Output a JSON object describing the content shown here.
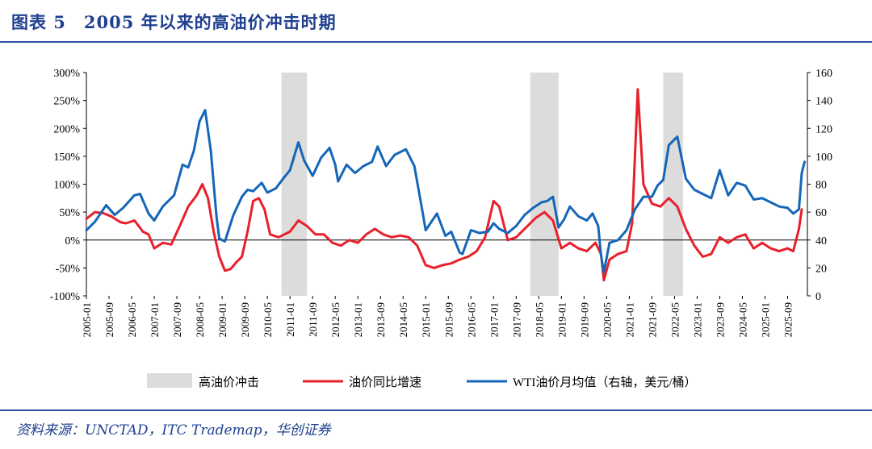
{
  "header": {
    "title": "图表 5　2005 年以来的高油价冲击时期"
  },
  "footer": {
    "source": "资料来源：UNCTAD，ITC Trademap，华创证券"
  },
  "chart_data": {
    "type": "line",
    "title": "图表 5　2005 年以来的高油价冲击时期",
    "x_tick_labels": [
      "2005-01",
      "2005-09",
      "2006-05",
      "2007-01",
      "2007-09",
      "2008-05",
      "2009-01",
      "2009-09",
      "2010-05",
      "2011-01",
      "2011-09",
      "2012-05",
      "2013-01",
      "2013-09",
      "2014-05",
      "2015-01",
      "2015-09",
      "2016-05",
      "2017-01",
      "2017-09",
      "2018-05",
      "2019-01",
      "2019-09",
      "2020-05",
      "2021-01",
      "2021-09",
      "2022-05",
      "2023-01",
      "2023-09",
      "2024-05",
      "2025-01",
      "2025-09"
    ],
    "y_left": {
      "ticks": [
        "-100%",
        "-50%",
        "0%",
        "50%",
        "100%",
        "150%",
        "200%",
        "250%",
        "300%"
      ],
      "range": [
        -100,
        300
      ],
      "unit": "%"
    },
    "y_right": {
      "ticks": [
        "0",
        "20",
        "40",
        "60",
        "80",
        "100",
        "120",
        "140",
        "160"
      ],
      "range": [
        0,
        160
      ]
    },
    "shaded_periods": [
      {
        "name": "高油价冲击",
        "start": "2010-10",
        "end": "2011-07"
      },
      {
        "name": "高油价冲击",
        "start": "2018-02",
        "end": "2018-12"
      },
      {
        "name": "高油价冲击",
        "start": "2022-01",
        "end": "2022-08"
      }
    ],
    "legend": [
      {
        "label": "高油价冲击",
        "type": "band",
        "color": "#dcdcdc"
      },
      {
        "label": "油价同比增速",
        "type": "line",
        "color": "#e8202a"
      },
      {
        "label": "WTI油价月均值（右轴，美元/桶）",
        "type": "line",
        "color": "#1566b8"
      }
    ],
    "series": [
      {
        "name": "油价同比增速",
        "axis": "left",
        "color": "#e8202a",
        "points": [
          [
            "2005-01",
            38
          ],
          [
            "2005-04",
            50
          ],
          [
            "2005-07",
            48
          ],
          [
            "2005-10",
            42
          ],
          [
            "2006-01",
            32
          ],
          [
            "2006-03",
            30
          ],
          [
            "2006-06",
            35
          ],
          [
            "2006-09",
            15
          ],
          [
            "2006-11",
            10
          ],
          [
            "2007-01",
            -15
          ],
          [
            "2007-04",
            -5
          ],
          [
            "2007-07",
            -8
          ],
          [
            "2007-10",
            25
          ],
          [
            "2008-01",
            60
          ],
          [
            "2008-04",
            80
          ],
          [
            "2008-06",
            100
          ],
          [
            "2008-08",
            75
          ],
          [
            "2008-10",
            15
          ],
          [
            "2008-12",
            -30
          ],
          [
            "2009-02",
            -55
          ],
          [
            "2009-04",
            -52
          ],
          [
            "2009-06",
            -40
          ],
          [
            "2009-08",
            -30
          ],
          [
            "2009-10",
            15
          ],
          [
            "2009-12",
            70
          ],
          [
            "2010-02",
            75
          ],
          [
            "2010-04",
            55
          ],
          [
            "2010-06",
            10
          ],
          [
            "2010-09",
            5
          ],
          [
            "2011-01",
            15
          ],
          [
            "2011-04",
            35
          ],
          [
            "2011-07",
            25
          ],
          [
            "2011-10",
            10
          ],
          [
            "2012-01",
            10
          ],
          [
            "2012-04",
            -5
          ],
          [
            "2012-07",
            -10
          ],
          [
            "2012-10",
            0
          ],
          [
            "2013-01",
            -5
          ],
          [
            "2013-04",
            10
          ],
          [
            "2013-07",
            20
          ],
          [
            "2013-10",
            10
          ],
          [
            "2014-01",
            5
          ],
          [
            "2014-04",
            8
          ],
          [
            "2014-07",
            5
          ],
          [
            "2014-10",
            -10
          ],
          [
            "2015-01",
            -45
          ],
          [
            "2015-04",
            -50
          ],
          [
            "2015-07",
            -45
          ],
          [
            "2015-10",
            -42
          ],
          [
            "2016-01",
            -35
          ],
          [
            "2016-04",
            -30
          ],
          [
            "2016-07",
            -20
          ],
          [
            "2016-10",
            5
          ],
          [
            "2017-01",
            70
          ],
          [
            "2017-03",
            60
          ],
          [
            "2017-06",
            0
          ],
          [
            "2017-09",
            5
          ],
          [
            "2018-01",
            25
          ],
          [
            "2018-04",
            40
          ],
          [
            "2018-07",
            50
          ],
          [
            "2018-10",
            35
          ],
          [
            "2019-01",
            -15
          ],
          [
            "2019-04",
            -5
          ],
          [
            "2019-07",
            -15
          ],
          [
            "2019-10",
            -20
          ],
          [
            "2020-01",
            -5
          ],
          [
            "2020-03",
            -25
          ],
          [
            "2020-04",
            -72
          ],
          [
            "2020-06",
            -35
          ],
          [
            "2020-09",
            -25
          ],
          [
            "2020-12",
            -20
          ],
          [
            "2021-02",
            30
          ],
          [
            "2021-04",
            270
          ],
          [
            "2021-06",
            100
          ],
          [
            "2021-09",
            65
          ],
          [
            "2021-12",
            60
          ],
          [
            "2022-03",
            75
          ],
          [
            "2022-06",
            60
          ],
          [
            "2022-09",
            20
          ],
          [
            "2022-12",
            -10
          ],
          [
            "2023-03",
            -30
          ],
          [
            "2023-06",
            -25
          ],
          [
            "2023-09",
            5
          ],
          [
            "2023-12",
            -5
          ],
          [
            "2024-03",
            5
          ],
          [
            "2024-06",
            10
          ],
          [
            "2024-09",
            -15
          ],
          [
            "2024-12",
            -5
          ],
          [
            "2025-03",
            -15
          ],
          [
            "2025-06",
            -20
          ],
          [
            "2025-09",
            -15
          ],
          [
            "2025-11",
            -20
          ],
          [
            "2026-01",
            20
          ],
          [
            "2026-02",
            55
          ]
        ]
      },
      {
        "name": "WTI油价月均值（右轴，美元/桶）",
        "axis": "right",
        "color": "#1566b8",
        "points": [
          [
            "2005-01",
            47
          ],
          [
            "2005-04",
            53
          ],
          [
            "2005-08",
            65
          ],
          [
            "2005-11",
            58
          ],
          [
            "2006-02",
            63
          ],
          [
            "2006-06",
            72
          ],
          [
            "2006-08",
            73
          ],
          [
            "2006-11",
            59
          ],
          [
            "2007-01",
            54
          ],
          [
            "2007-04",
            64
          ],
          [
            "2007-08",
            72
          ],
          [
            "2007-11",
            94
          ],
          [
            "2008-01",
            92
          ],
          [
            "2008-03",
            104
          ],
          [
            "2008-05",
            125
          ],
          [
            "2008-07",
            133
          ],
          [
            "2008-09",
            104
          ],
          [
            "2008-11",
            57
          ],
          [
            "2008-12",
            41
          ],
          [
            "2009-02",
            39
          ],
          [
            "2009-05",
            58
          ],
          [
            "2009-08",
            71
          ],
          [
            "2009-10",
            76
          ],
          [
            "2009-12",
            75
          ],
          [
            "2010-03",
            81
          ],
          [
            "2010-05",
            74
          ],
          [
            "2010-08",
            77
          ],
          [
            "2010-11",
            85
          ],
          [
            "2011-01",
            90
          ],
          [
            "2011-04",
            110
          ],
          [
            "2011-06",
            97
          ],
          [
            "2011-09",
            86
          ],
          [
            "2011-12",
            99
          ],
          [
            "2012-03",
            106
          ],
          [
            "2012-05",
            94
          ],
          [
            "2012-06",
            82
          ],
          [
            "2012-09",
            94
          ],
          [
            "2012-12",
            88
          ],
          [
            "2013-03",
            93
          ],
          [
            "2013-06",
            96
          ],
          [
            "2013-08",
            107
          ],
          [
            "2013-11",
            93
          ],
          [
            "2014-02",
            101
          ],
          [
            "2014-06",
            105
          ],
          [
            "2014-09",
            93
          ],
          [
            "2014-12",
            59
          ],
          [
            "2015-01",
            47
          ],
          [
            "2015-05",
            59
          ],
          [
            "2015-08",
            43
          ],
          [
            "2015-10",
            46
          ],
          [
            "2016-01",
            31
          ],
          [
            "2016-02",
            30
          ],
          [
            "2016-05",
            47
          ],
          [
            "2016-08",
            45
          ],
          [
            "2016-11",
            46
          ],
          [
            "2017-01",
            52
          ],
          [
            "2017-03",
            48
          ],
          [
            "2017-06",
            45
          ],
          [
            "2017-09",
            50
          ],
          [
            "2017-12",
            58
          ],
          [
            "2018-03",
            63
          ],
          [
            "2018-06",
            67
          ],
          [
            "2018-08",
            68
          ],
          [
            "2018-10",
            71
          ],
          [
            "2018-12",
            49
          ],
          [
            "2019-02",
            55
          ],
          [
            "2019-04",
            64
          ],
          [
            "2019-07",
            57
          ],
          [
            "2019-10",
            54
          ],
          [
            "2019-12",
            59
          ],
          [
            "2020-02",
            50
          ],
          [
            "2020-03",
            29
          ],
          [
            "2020-04",
            17
          ],
          [
            "2020-06",
            38
          ],
          [
            "2020-09",
            40
          ],
          [
            "2020-12",
            47
          ],
          [
            "2021-03",
            62
          ],
          [
            "2021-06",
            71
          ],
          [
            "2021-09",
            71
          ],
          [
            "2021-11",
            79
          ],
          [
            "2022-01",
            83
          ],
          [
            "2022-03",
            108
          ],
          [
            "2022-06",
            114
          ],
          [
            "2022-09",
            84
          ],
          [
            "2022-12",
            76
          ],
          [
            "2023-03",
            73
          ],
          [
            "2023-06",
            70
          ],
          [
            "2023-09",
            90
          ],
          [
            "2023-12",
            72
          ],
          [
            "2024-03",
            81
          ],
          [
            "2024-06",
            79
          ],
          [
            "2024-09",
            69
          ],
          [
            "2024-12",
            70
          ],
          [
            "2025-03",
            67
          ],
          [
            "2025-06",
            64
          ],
          [
            "2025-09",
            63
          ],
          [
            "2025-11",
            59
          ],
          [
            "2026-01",
            62
          ],
          [
            "2026-02",
            88
          ],
          [
            "2026-03",
            96
          ]
        ]
      }
    ]
  }
}
